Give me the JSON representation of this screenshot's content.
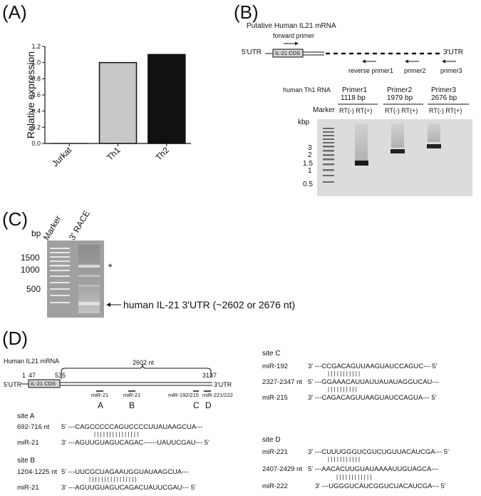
{
  "panels": {
    "a": "(A)",
    "b": "(B)",
    "c": "(C)",
    "d": "(D)"
  },
  "chart_data": {
    "type": "bar",
    "title": "",
    "xlabel": "",
    "ylabel": "Relative expression",
    "categories": [
      "Jurkat",
      "Th1",
      "Th2"
    ],
    "values": [
      0.0,
      1.0,
      1.1
    ],
    "bar_colors": [
      "#ffffff",
      "#c8c8c8",
      "#111111"
    ],
    "ylim": [
      0,
      1.2
    ],
    "yticks": [
      "0.0",
      "0.2",
      "0.4",
      "0.6",
      "0.8",
      "1.0",
      "1.2"
    ],
    "grid": false
  },
  "panel_b": {
    "title": "Putative Human IL21 mRNA",
    "forward_primer": "forward primer",
    "utr5": "5'UTR",
    "cds": "IL-21 CDS",
    "utr3": "3'UTR",
    "reverse_primer1": "reverse primer1",
    "primer2": "primer2",
    "primer3": "primer3",
    "rna_label": "human Th1 RNA",
    "kbp": "kbp",
    "marker": "Marker",
    "groups": [
      {
        "name": "Primer1",
        "size": "1118 bp",
        "lanes": "RT(-)  RT(+)"
      },
      {
        "name": "Primer2",
        "size": "1979 bp",
        "lanes": "RT(-)  RT(+)"
      },
      {
        "name": "Primer3",
        "size": "2676 bp",
        "lanes": "RT(-)  RT(+)"
      }
    ],
    "kbp_ticks": [
      "3",
      "2",
      "1.5",
      "1",
      "0.5"
    ]
  },
  "panel_c": {
    "bp": "bp",
    "lane1": "Marker",
    "lane2": "3' RACE",
    "ticks": [
      "1500",
      "1000",
      "500"
    ],
    "star": "*",
    "arrow_label": "human IL-21 3'UTR (~2602 or 2676 nt)"
  },
  "panel_d": {
    "title": "Human IL21 mRNA",
    "pos1": "1",
    "pos47": "47",
    "pos535": "535",
    "pos3137": "3137",
    "length": "2602 nt",
    "utr5": "5'UTR",
    "cds": "IL-21 CDS",
    "utr3": "3'UTR",
    "site_marks": [
      "miR-21",
      "miR-21",
      "miR-192/215",
      "miR-221/222"
    ],
    "site_letters": [
      "A",
      "B",
      "C",
      "D"
    ],
    "site_a": {
      "title": "site A",
      "r1_label": "692-716 nt",
      "r1_seq": "5' ---CAGCCCCCAGUCCCCUUAUAAGCUA---",
      "bars": "|   | | | | |         | | | | | | | | |",
      "r2_label": "miR-21",
      "r2_seq": "3' ---AGUUGUAGUCAGAC------UAUUCGAU--- 5'"
    },
    "site_b": {
      "title": "site B",
      "r1_label": "1204-1225 nt",
      "r1_seq": "5' ---UUCGCUAGAAUGGUAUAAGCUA---",
      "bars": "| | | |           | | |   | | | | | | | | |",
      "r2_label": "miR-21",
      "r2_seq": "3' ---AGUUGUAGUCAGACUAUUCGAU--- 5'"
    },
    "site_c": {
      "title": "site C",
      "r1_label": "miR-192",
      "r1_seq": "3' ---CCGACAGUUAAGUAUCCAGUC--- 5'",
      "bars1": "| |           | | | | | | | | |",
      "r2_label": "2327-2347 nt",
      "r2_seq": "5' ---GGAAACAUUAUUAUAUAGGUCAU---",
      "bars2": "|               | | | | | | | | |",
      "r3_label": "miR-215",
      "r3_seq": "3' ---CAGACAGUUAAGUAUCCAGUA--- 5'"
    },
    "site_d": {
      "title": "site D",
      "r1_label": "miR-221",
      "r1_seq": "3' ---CUUUGGGUCGUCUGUUACAUCGA--- 5'",
      "bars1": "| |       | |     | | | | | | |",
      "r2_label": "2407-2429 nt",
      "r2_seq": "5' ---AACACUUGUAUAAAAUUGUAGCA---",
      "bars2": "| | |     | |     | | | | | | |",
      "r3_label": "miR-222",
      "r3_seq": "3' ---UGGGUCAUCGGUCUACAUCGA--- 5'"
    }
  }
}
